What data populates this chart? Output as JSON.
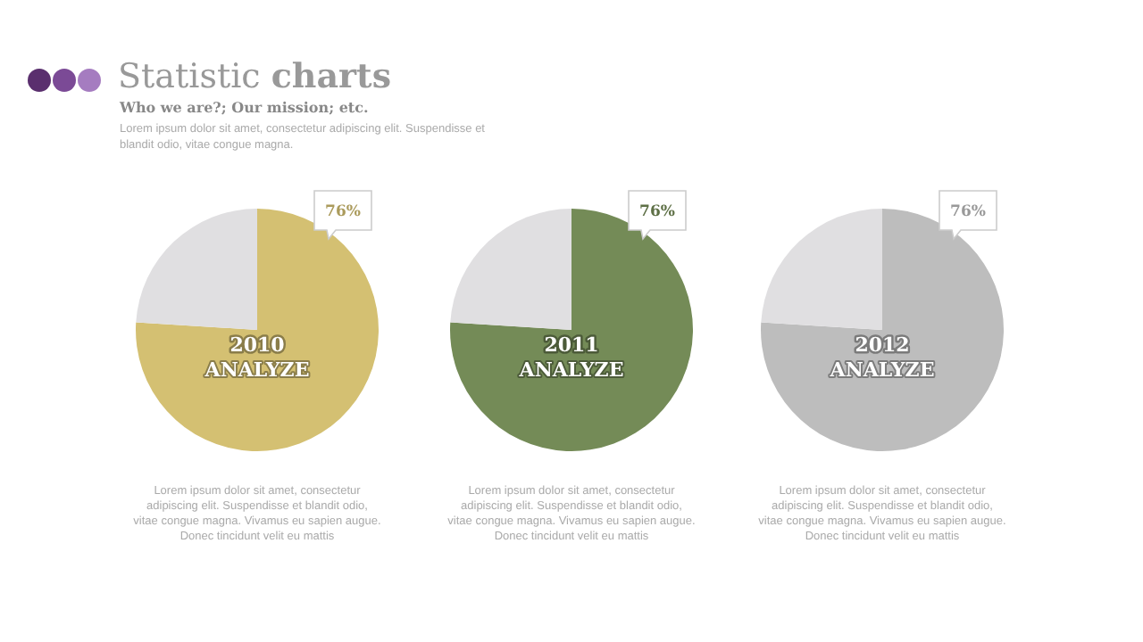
{
  "chart_data": [
    {
      "type": "other",
      "title": "Statistic charts",
      "subtitle": "Who we are?; Our mission; etc.",
      "annotations": [
        "Lorem ipsum dolor sit amet, consectetur adipiscing elit. Suspendisse et blandit odio, vitae congue magna."
      ]
    },
    {
      "type": "pie",
      "title": "2010",
      "subtitle": "ANALYZE",
      "categories": [
        null,
        null
      ],
      "values": [
        76,
        24
      ],
      "colors": [
        "#d4c072",
        "#e0dfe1"
      ],
      "value_labels": [
        "76%",
        null
      ],
      "annotations": [
        "Lorem ipsum dolor sit amet, consectetur adipiscing elit. Suspendisse et blandit odio, vitae congue magna. Vivamus eu sapien augue. Donec tincidunt velit eu mattis"
      ]
    },
    {
      "type": "pie",
      "title": "2011",
      "subtitle": "ANALYZE",
      "categories": [
        null,
        null
      ],
      "values": [
        76,
        24
      ],
      "colors": [
        "#748b57",
        "#e0dfe1"
      ],
      "value_labels": [
        "76%",
        null
      ],
      "annotations": [
        "Lorem ipsum dolor sit amet, consectetur adipiscing elit. Suspendisse et blandit odio, vitae congue magna. Vivamus eu sapien augue. Donec tincidunt velit eu mattis"
      ]
    },
    {
      "type": "pie",
      "title": "2012",
      "subtitle": "ANALYZE",
      "categories": [
        null,
        null
      ],
      "values": [
        76,
        24
      ],
      "colors": [
        "#bdbdbd",
        "#e0dfe1"
      ],
      "value_labels": [
        "76%",
        null
      ],
      "annotations": [
        "Lorem ipsum dolor sit amet, consectetur adipiscing elit. Suspendisse et blandit odio, vitae congue magna. Vivamus eu sapien augue. Donec tincidunt velit eu mattis"
      ]
    }
  ]
}
